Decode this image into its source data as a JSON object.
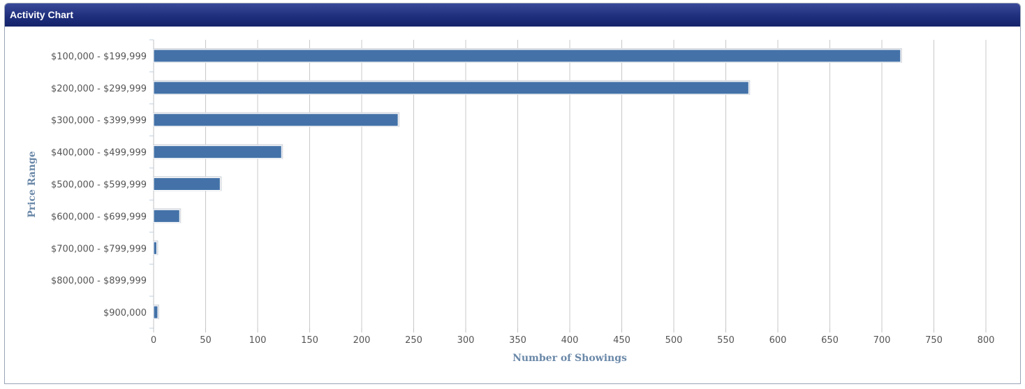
{
  "panel": {
    "title": "Activity Chart"
  },
  "chart_data": {
    "type": "bar",
    "orientation": "horizontal",
    "categories": [
      "$100,000 - $199,999",
      "$200,000 - $299,999",
      "$300,000 - $399,999",
      "$400,000 - $499,999",
      "$500,000 - $599,999",
      "$600,000 - $699,999",
      "$700,000 - $799,999",
      "$800,000 - $899,999",
      "$900,000"
    ],
    "values": [
      718,
      572,
      235,
      123,
      64,
      25,
      3,
      0,
      4
    ],
    "xlabel": "Number of Showings",
    "ylabel": "Price Range",
    "xlim": [
      0,
      800
    ],
    "xticks": [
      0,
      50,
      100,
      150,
      200,
      250,
      300,
      350,
      400,
      450,
      500,
      550,
      600,
      650,
      700,
      750,
      800
    ],
    "grid": "vertical",
    "colors": {
      "bar": "#4472a8",
      "grid": "#c8c8c8"
    }
  }
}
